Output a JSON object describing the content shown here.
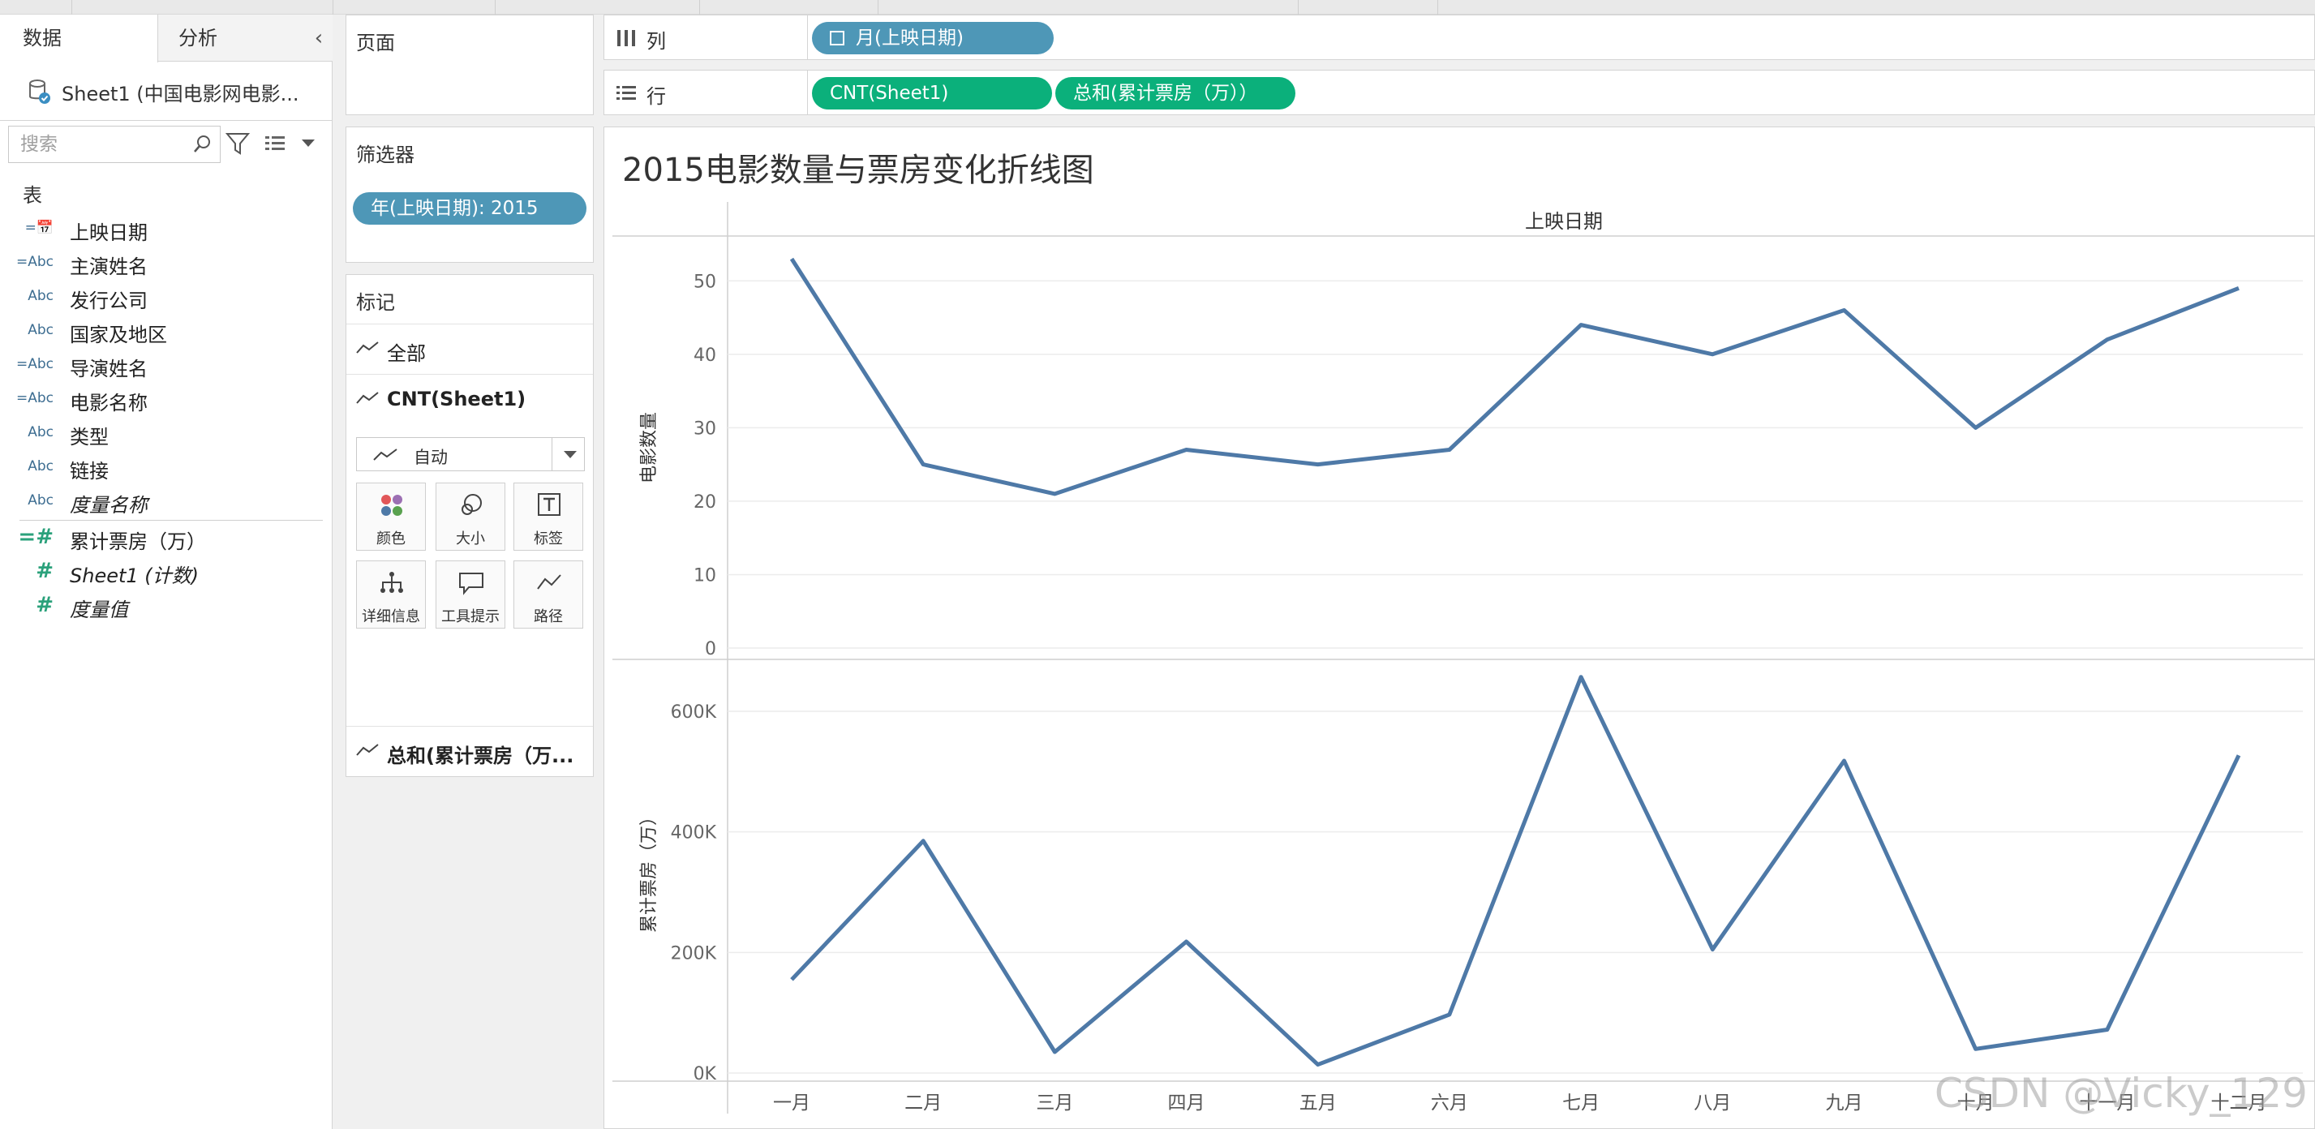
{
  "data_pane": {
    "tabs": [
      "数据",
      "分析"
    ],
    "datasource": "Sheet1 (中国电影网电影...",
    "search_placeholder": "搜索",
    "section_title": "表",
    "fields": [
      {
        "icon": "=📅",
        "label": "上映日期",
        "kind": "date"
      },
      {
        "icon": "=Abc",
        "label": "主演姓名",
        "kind": "dimension"
      },
      {
        "icon": "Abc",
        "label": "发行公司",
        "kind": "dimension"
      },
      {
        "icon": "Abc",
        "label": "国家及地区",
        "kind": "dimension"
      },
      {
        "icon": "=Abc",
        "label": "导演姓名",
        "kind": "dimension"
      },
      {
        "icon": "=Abc",
        "label": "电影名称",
        "kind": "dimension"
      },
      {
        "icon": "Abc",
        "label": "类型",
        "kind": "dimension"
      },
      {
        "icon": "Abc",
        "label": "链接",
        "kind": "dimension"
      },
      {
        "icon": "Abc",
        "label": "度量名称",
        "kind": "dimension",
        "italic": true
      },
      {
        "icon": "=#",
        "label": "累计票房（万）",
        "kind": "measure"
      },
      {
        "icon": "#",
        "label": "Sheet1 (计数)",
        "kind": "measure",
        "italic": true
      },
      {
        "icon": "#",
        "label": "度量值",
        "kind": "measure",
        "italic": true
      }
    ]
  },
  "cards": {
    "pages_title": "页面",
    "filters_title": "筛选器",
    "filter_pill": "年(上映日期): 2015",
    "marks_title": "标记",
    "marks_all": "全部",
    "marks_cnt": "CNT(Sheet1)",
    "mark_type": "自动",
    "mark_buttons": [
      {
        "label": "颜色",
        "icon": "color-icon"
      },
      {
        "label": "大小",
        "icon": "size-icon"
      },
      {
        "label": "标签",
        "icon": "label-icon"
      },
      {
        "label": "详细信息",
        "icon": "detail-icon"
      },
      {
        "label": "工具提示",
        "icon": "tooltip-icon"
      },
      {
        "label": "路径",
        "icon": "path-icon"
      }
    ],
    "marks_sum": "总和(累计票房（万..."
  },
  "shelves": {
    "columns_label": "列",
    "columns_pill": "月(上映日期)",
    "rows_label": "行",
    "rows_pills": [
      "CNT(Sheet1)",
      "总和(累计票房（万））"
    ]
  },
  "colors": {
    "line": "#4e79a7",
    "pill_blue": "#4e97b7",
    "pill_green": "#0bb07b"
  },
  "chart_data": {
    "type": "line",
    "title": "2015电影数量与票房变化折线图",
    "xlabel": "上映日期",
    "categories": [
      "一月",
      "二月",
      "三月",
      "四月",
      "五月",
      "六月",
      "七月",
      "八月",
      "九月",
      "十月",
      "十一月",
      "十二月"
    ],
    "panes": [
      {
        "ylabel": "电影数量",
        "ylim": [
          0,
          55
        ],
        "yticks": [
          0,
          10,
          20,
          30,
          40,
          50
        ],
        "ytick_labels": [
          "0",
          "10",
          "20",
          "30",
          "40",
          "50"
        ],
        "values": [
          53,
          25,
          21,
          27,
          25,
          27,
          44,
          40,
          46,
          30,
          42,
          49
        ]
      },
      {
        "ylabel": "累计票房（万）",
        "ylim": [
          0,
          670000
        ],
        "yticks": [
          0,
          200000,
          400000,
          600000
        ],
        "ytick_labels": [
          "0K",
          "200K",
          "400K",
          "600K"
        ],
        "values": [
          155000,
          385000,
          35000,
          218000,
          14000,
          97000,
          657000,
          205000,
          518000,
          40000,
          72000,
          527000
        ]
      }
    ]
  },
  "watermark": "CSDN @Vicky_129"
}
